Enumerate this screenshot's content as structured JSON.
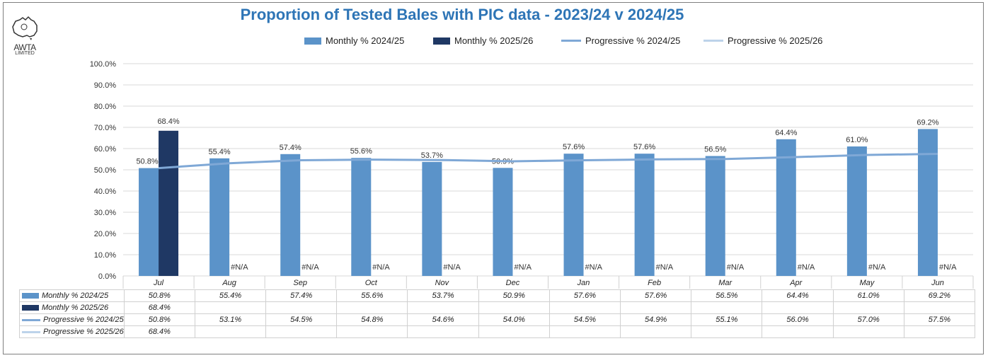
{
  "title": "Proportion of Tested Bales with PIC data - 2023/24 v 2024/25",
  "logo": {
    "text": "AWTA",
    "subtext": "LIMITED"
  },
  "colors": {
    "monthly_2425": "#5b93c9",
    "monthly_2526": "#1f3864",
    "progressive_2425": "#7fa8d6",
    "progressive_2526": "#bdd3ea",
    "title": "#2e75b6"
  },
  "legend": [
    {
      "label": "Monthly % 2024/25",
      "kind": "bar",
      "color": "#5b93c9"
    },
    {
      "label": "Monthly % 2025/26",
      "kind": "bar",
      "color": "#1f3864"
    },
    {
      "label": "Progressive % 2024/25",
      "kind": "line",
      "color": "#7fa8d6"
    },
    {
      "label": "Progressive % 2025/26",
      "kind": "line",
      "color": "#bdd3ea"
    }
  ],
  "na_label": "#N/A",
  "chart_data": {
    "type": "bar",
    "title": "Proportion of Tested Bales with PIC data - 2023/24 v 2024/25",
    "categories": [
      "Jul",
      "Aug",
      "Sep",
      "Oct",
      "Nov",
      "Dec",
      "Jan",
      "Feb",
      "Mar",
      "Apr",
      "May",
      "Jun"
    ],
    "y_ticks": [
      "0.0%",
      "10.0%",
      "20.0%",
      "30.0%",
      "40.0%",
      "50.0%",
      "60.0%",
      "70.0%",
      "80.0%",
      "90.0%",
      "100.0%"
    ],
    "ylim": [
      0,
      100
    ],
    "grid": true,
    "legend_position": "top",
    "series": [
      {
        "name": "Monthly % 2024/25",
        "kind": "bar",
        "values": [
          50.8,
          55.4,
          57.4,
          55.6,
          53.7,
          50.9,
          57.6,
          57.6,
          56.5,
          64.4,
          61.0,
          69.2
        ],
        "labels": [
          "50.8%",
          "55.4%",
          "57.4%",
          "55.6%",
          "53.7%",
          "50.9%",
          "57.6%",
          "57.6%",
          "56.5%",
          "64.4%",
          "61.0%",
          "69.2%"
        ]
      },
      {
        "name": "Monthly % 2025/26",
        "kind": "bar",
        "values": [
          68.4,
          null,
          null,
          null,
          null,
          null,
          null,
          null,
          null,
          null,
          null,
          null
        ],
        "labels": [
          "68.4%",
          "",
          "",
          "",
          "",
          "",
          "",
          "",
          "",
          "",
          "",
          ""
        ]
      },
      {
        "name": "Progressive % 2024/25",
        "kind": "line",
        "values": [
          50.8,
          53.1,
          54.5,
          54.8,
          54.6,
          54.0,
          54.5,
          54.9,
          55.1,
          56.0,
          57.0,
          57.5
        ],
        "labels": [
          "50.8%",
          "53.1%",
          "54.5%",
          "54.8%",
          "54.6%",
          "54.0%",
          "54.5%",
          "54.9%",
          "55.1%",
          "56.0%",
          "57.0%",
          "57.5%"
        ]
      },
      {
        "name": "Progressive % 2025/26",
        "kind": "line",
        "values": [
          68.4,
          null,
          null,
          null,
          null,
          null,
          null,
          null,
          null,
          null,
          null,
          null
        ],
        "labels": [
          "68.4%",
          "",
          "",
          "",
          "",
          "",
          "",
          "",
          "",
          "",
          "",
          ""
        ]
      }
    ]
  }
}
